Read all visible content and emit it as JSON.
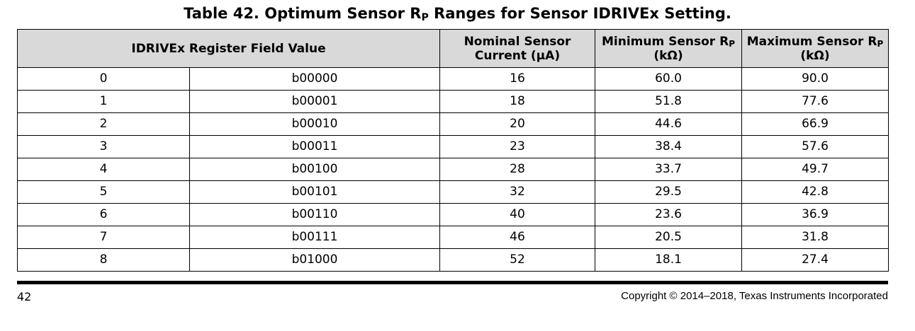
{
  "caption": {
    "prefix": "Table 42. Optimum Sensor R",
    "subscript": "P",
    "suffix": " Ranges for Sensor IDRIVEx Setting."
  },
  "headers": {
    "register_field": "IDRIVEx Register Field Value",
    "nominal_line1": "Nominal Sensor",
    "nominal_line2": "Current (µA)",
    "min_line1_prefix": "Minimum Sensor R",
    "min_sub": "P",
    "min_line2": "(kΩ)",
    "max_line1_prefix": "Maximum Sensor R",
    "max_sub": "P",
    "max_line2": "(kΩ)"
  },
  "rows": [
    {
      "decimal": "0",
      "binary": "b00000",
      "nominal": "16",
      "min": "60.0",
      "max": "90.0"
    },
    {
      "decimal": "1",
      "binary": "b00001",
      "nominal": "18",
      "min": "51.8",
      "max": "77.6"
    },
    {
      "decimal": "2",
      "binary": "b00010",
      "nominal": "20",
      "min": "44.6",
      "max": "66.9"
    },
    {
      "decimal": "3",
      "binary": "b00011",
      "nominal": "23",
      "min": "38.4",
      "max": "57.6"
    },
    {
      "decimal": "4",
      "binary": "b00100",
      "nominal": "28",
      "min": "33.7",
      "max": "49.7"
    },
    {
      "decimal": "5",
      "binary": "b00101",
      "nominal": "32",
      "min": "29.5",
      "max": "42.8"
    },
    {
      "decimal": "6",
      "binary": "b00110",
      "nominal": "40",
      "min": "23.6",
      "max": "36.9"
    },
    {
      "decimal": "7",
      "binary": "b00111",
      "nominal": "46",
      "min": "20.5",
      "max": "31.8"
    },
    {
      "decimal": "8",
      "binary": "b01000",
      "nominal": "52",
      "min": "18.1",
      "max": "27.4"
    }
  ],
  "footer": {
    "page_number": "42",
    "copyright": "Copyright © 2014–2018, Texas Instruments Incorporated"
  },
  "colors": {
    "header_background": "#d9d9d9",
    "rule": "#000000"
  }
}
